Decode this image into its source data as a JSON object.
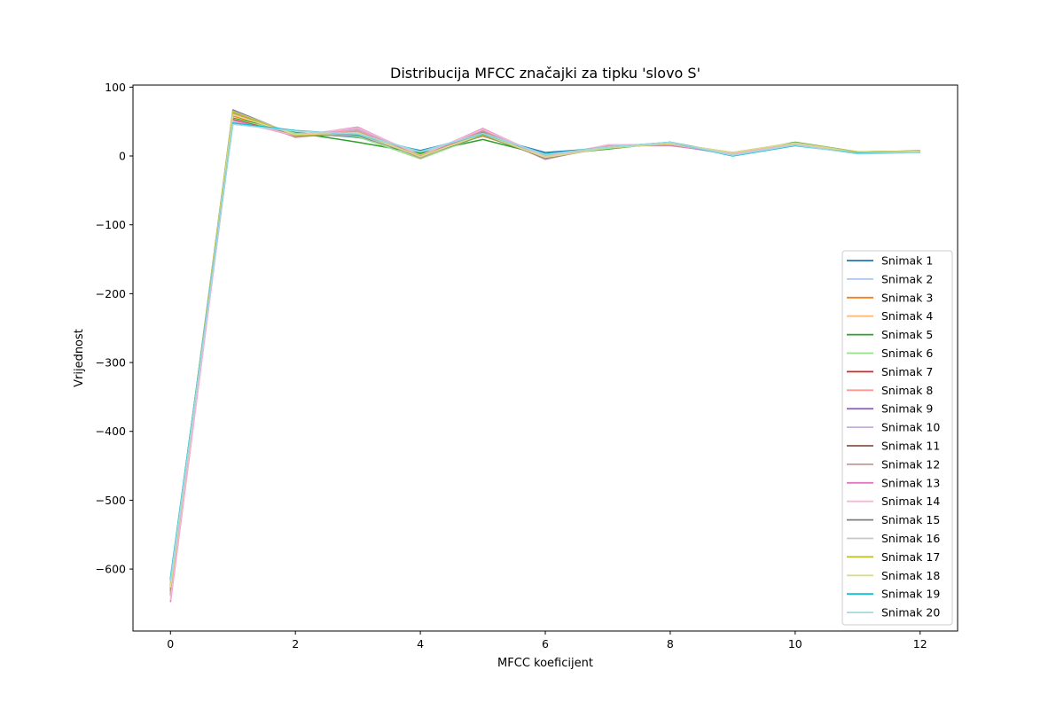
{
  "chart_data": {
    "type": "line",
    "title": "Distribucija MFCC značajki za tipku 'slovo S'",
    "xlabel": "MFCC koeficijent",
    "ylabel": "Vrijednost",
    "xlim": [
      -0.6,
      12.6
    ],
    "ylim": [
      -690,
      103
    ],
    "xticks": [
      0,
      2,
      4,
      6,
      8,
      10,
      12
    ],
    "xtick_labels": [
      "0",
      "2",
      "4",
      "6",
      "8",
      "10",
      "12"
    ],
    "yticks": [
      100,
      0,
      -100,
      -200,
      -300,
      -400,
      -500,
      -600
    ],
    "ytick_labels": [
      "100",
      "0",
      "−100",
      "−200",
      "−300",
      "−400",
      "−500",
      "−600"
    ],
    "grid": false,
    "legend_position": "lower-right",
    "x": [
      0,
      1,
      2,
      3,
      4,
      5,
      6,
      7,
      8,
      9,
      10,
      11,
      12
    ],
    "series": [
      {
        "name": "Snimak 1",
        "color": "#1f77b4",
        "values": [
          -615,
          52,
          34,
          27,
          8,
          30,
          5,
          12,
          20,
          1,
          19,
          5,
          6
        ]
      },
      {
        "name": "Snimak 2",
        "color": "#aec7e8",
        "values": [
          -620,
          50,
          33,
          30,
          5,
          32,
          3,
          11,
          19,
          2,
          18,
          4,
          6
        ]
      },
      {
        "name": "Snimak 3",
        "color": "#ff7f0e",
        "values": [
          -625,
          58,
          32,
          30,
          2,
          29,
          0,
          13,
          18,
          4,
          19,
          5,
          7
        ]
      },
      {
        "name": "Snimak 4",
        "color": "#ffbb78",
        "values": [
          -630,
          60,
          31,
          34,
          1,
          31,
          -1,
          12,
          18,
          4,
          18,
          5,
          7
        ]
      },
      {
        "name": "Snimak 5",
        "color": "#2ca02c",
        "values": [
          -617,
          55,
          34,
          20,
          4,
          24,
          1,
          10,
          20,
          3,
          20,
          6,
          7
        ]
      },
      {
        "name": "Snimak 6",
        "color": "#98df8a",
        "values": [
          -622,
          54,
          33,
          28,
          -4,
          30,
          0,
          11,
          19,
          3,
          19,
          5,
          6
        ]
      },
      {
        "name": "Snimak 7",
        "color": "#d62728",
        "values": [
          -628,
          53,
          30,
          33,
          0,
          36,
          -2,
          14,
          17,
          3,
          18,
          5,
          7
        ]
      },
      {
        "name": "Snimak 8",
        "color": "#ff9896",
        "values": [
          -635,
          52,
          29,
          38,
          -1,
          38,
          -3,
          15,
          16,
          3,
          18,
          4,
          7
        ]
      },
      {
        "name": "Snimak 9",
        "color": "#9467bd",
        "values": [
          -638,
          51,
          30,
          40,
          0,
          39,
          -3,
          16,
          16,
          2,
          17,
          4,
          7
        ]
      },
      {
        "name": "Snimak 10",
        "color": "#c5b0d5",
        "values": [
          -640,
          50,
          31,
          39,
          1,
          38,
          -2,
          15,
          17,
          2,
          17,
          4,
          7
        ]
      },
      {
        "name": "Snimak 11",
        "color": "#8c564b",
        "values": [
          -632,
          63,
          28,
          34,
          -2,
          35,
          -4,
          14,
          16,
          4,
          19,
          5,
          7
        ]
      },
      {
        "name": "Snimak 12",
        "color": "#c49c94",
        "values": [
          -636,
          62,
          27,
          36,
          -3,
          36,
          -5,
          15,
          15,
          4,
          19,
          5,
          8
        ]
      },
      {
        "name": "Snimak 13",
        "color": "#e377c2",
        "values": [
          -648,
          52,
          29,
          42,
          0,
          40,
          -2,
          16,
          16,
          3,
          17,
          4,
          7
        ]
      },
      {
        "name": "Snimak 14",
        "color": "#f7b6d2",
        "values": [
          -645,
          50,
          30,
          41,
          1,
          39,
          -1,
          16,
          17,
          3,
          17,
          4,
          7
        ]
      },
      {
        "name": "Snimak 15",
        "color": "#7f7f7f",
        "values": [
          -626,
          67,
          30,
          30,
          -1,
          30,
          -3,
          12,
          18,
          5,
          19,
          6,
          7
        ]
      },
      {
        "name": "Snimak 16",
        "color": "#c7c7c7",
        "values": [
          -624,
          65,
          31,
          31,
          0,
          31,
          -2,
          12,
          18,
          5,
          19,
          6,
          7
        ]
      },
      {
        "name": "Snimak 17",
        "color": "#bcbd22",
        "values": [
          -623,
          64,
          30,
          33,
          0,
          31,
          -2,
          12,
          18,
          5,
          19,
          6,
          7
        ]
      },
      {
        "name": "Snimak 18",
        "color": "#dbdb8d",
        "values": [
          -627,
          60,
          31,
          34,
          -1,
          32,
          -2,
          12,
          18,
          5,
          19,
          5,
          7
        ]
      },
      {
        "name": "Snimak 19",
        "color": "#17becf",
        "values": [
          -613,
          48,
          37,
          31,
          7,
          32,
          3,
          13,
          20,
          0,
          15,
          4,
          5
        ]
      },
      {
        "name": "Snimak 20",
        "color": "#9edae5",
        "values": [
          -618,
          46,
          36,
          32,
          6,
          33,
          2,
          13,
          20,
          1,
          16,
          3,
          5
        ]
      }
    ]
  }
}
